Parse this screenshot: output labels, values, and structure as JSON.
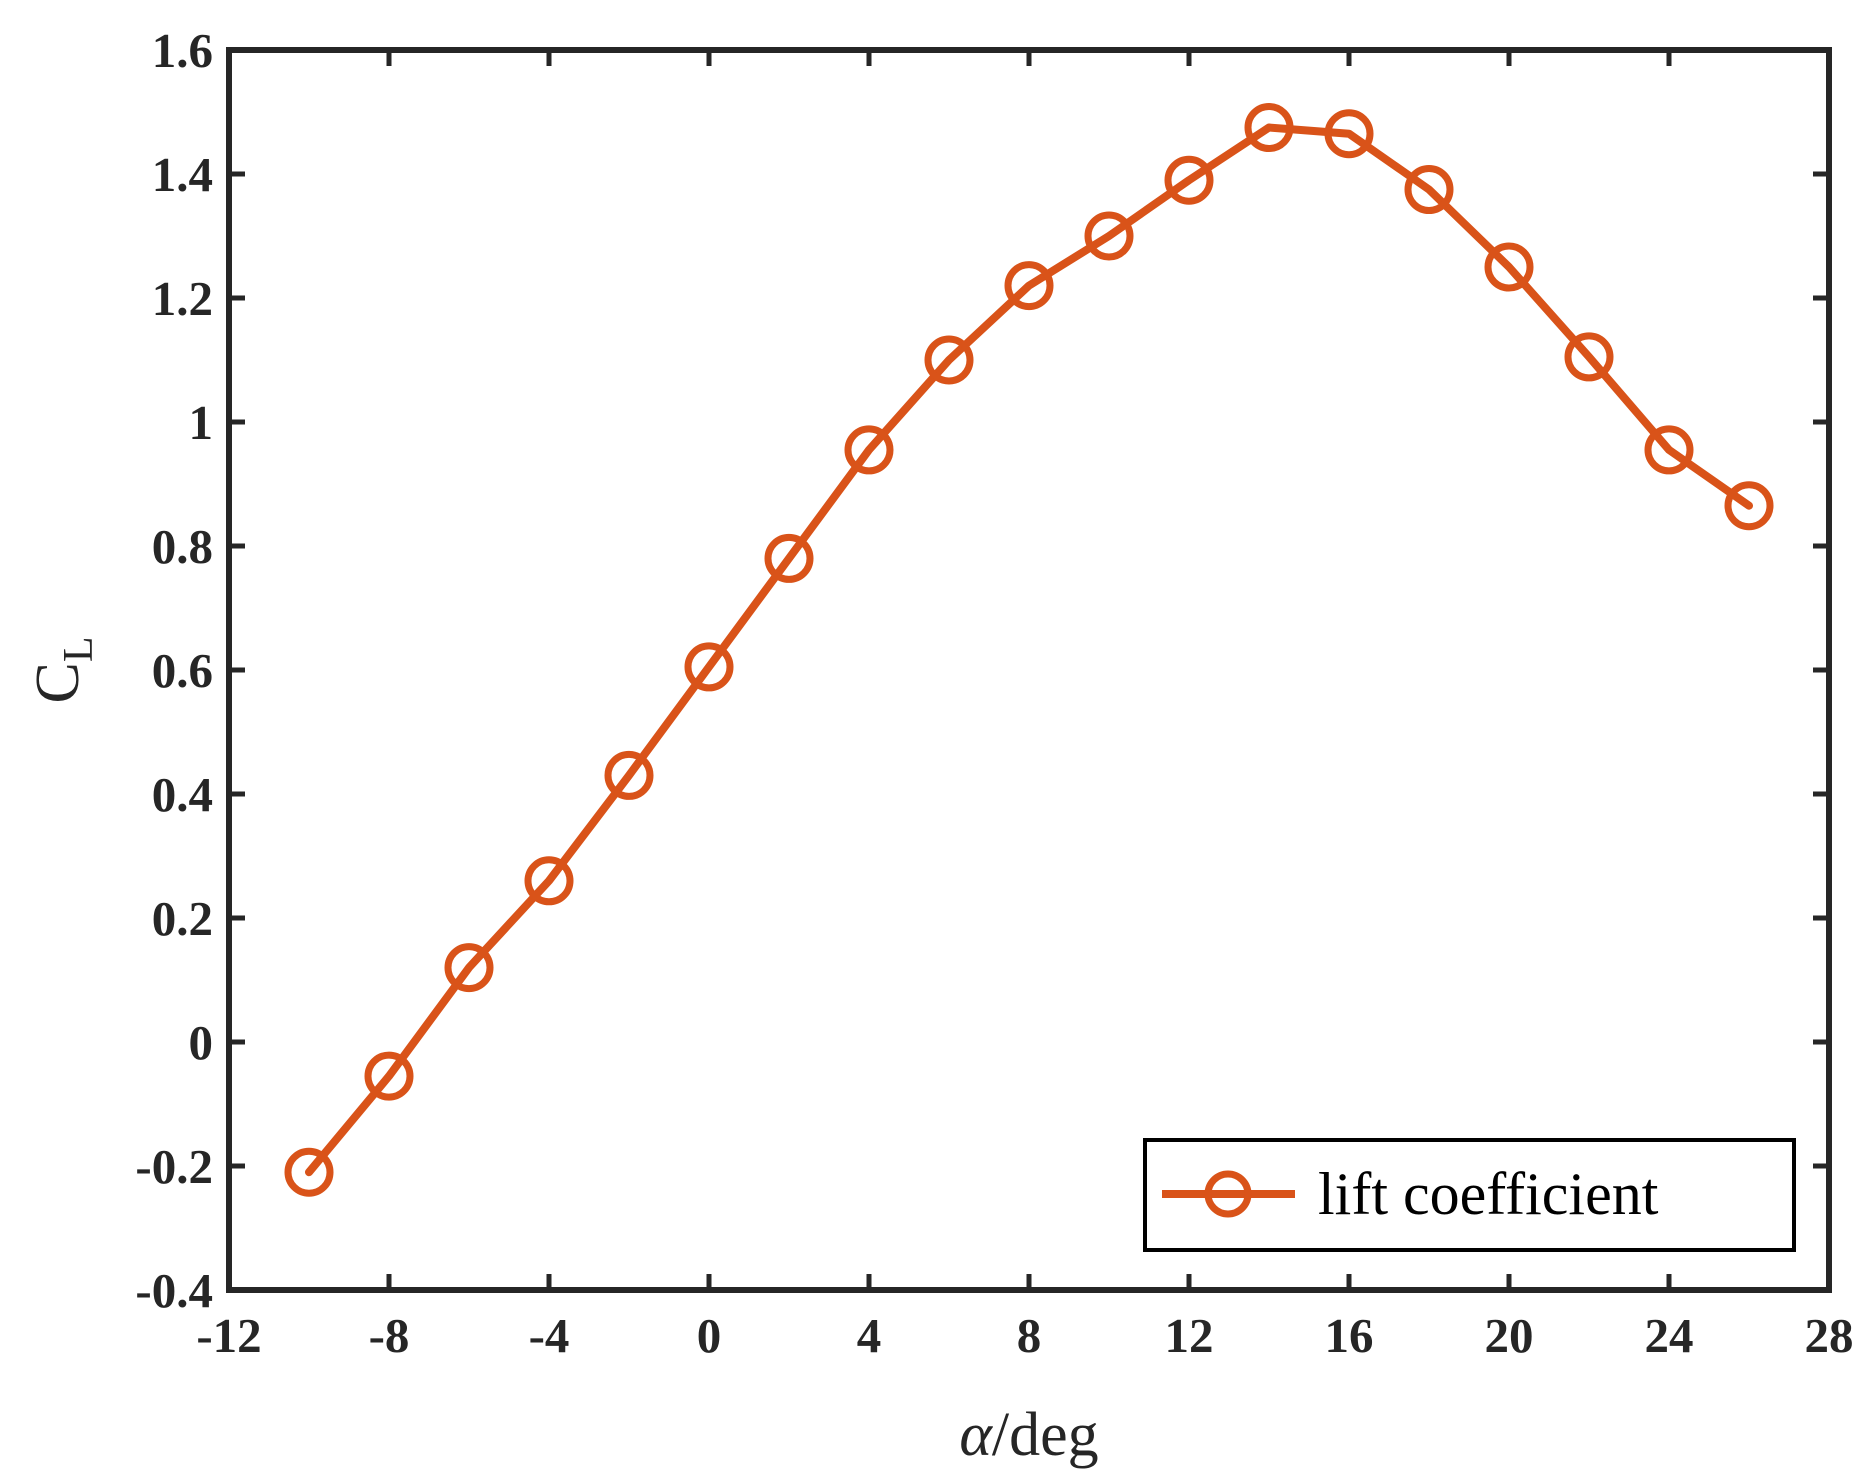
{
  "colors": {
    "series": "#D95319",
    "axis": "#262626",
    "background": "#ffffff"
  },
  "chart_data": {
    "type": "line",
    "title": "",
    "xlabel_symbol": "α",
    "xlabel_rest": "/deg",
    "ylabel_main": "C",
    "ylabel_sub": "L",
    "xlim": [
      -12,
      28
    ],
    "ylim": [
      -0.4,
      1.6
    ],
    "xticks": [
      -12,
      -8,
      -4,
      0,
      4,
      8,
      12,
      16,
      20,
      24,
      28
    ],
    "xtick_labels": [
      "-12",
      "-8",
      "-4",
      "0",
      "4",
      "8",
      "12",
      "16",
      "20",
      "24",
      "28"
    ],
    "yticks": [
      -0.4,
      -0.2,
      0,
      0.2,
      0.4,
      0.6,
      0.8,
      1,
      1.2,
      1.4,
      1.6
    ],
    "ytick_labels": [
      "-0.4",
      "-0.2",
      "0",
      "0.2",
      "0.4",
      "0.6",
      "0.8",
      "1",
      "1.2",
      "1.4",
      "1.6"
    ],
    "grid": false,
    "legend_position": "bottom-right",
    "series": [
      {
        "name": "lift coefficient",
        "marker": "circle",
        "x": [
          -10,
          -8,
          -6,
          -4,
          -2,
          0,
          2,
          4,
          6,
          8,
          10,
          12,
          14,
          16,
          18,
          20,
          22,
          24,
          26
        ],
        "y": [
          -0.21,
          -0.055,
          0.12,
          0.26,
          0.43,
          0.605,
          0.78,
          0.955,
          1.1,
          1.22,
          1.3,
          1.39,
          1.475,
          1.465,
          1.375,
          1.25,
          1.105,
          0.955,
          0.865
        ]
      }
    ]
  }
}
